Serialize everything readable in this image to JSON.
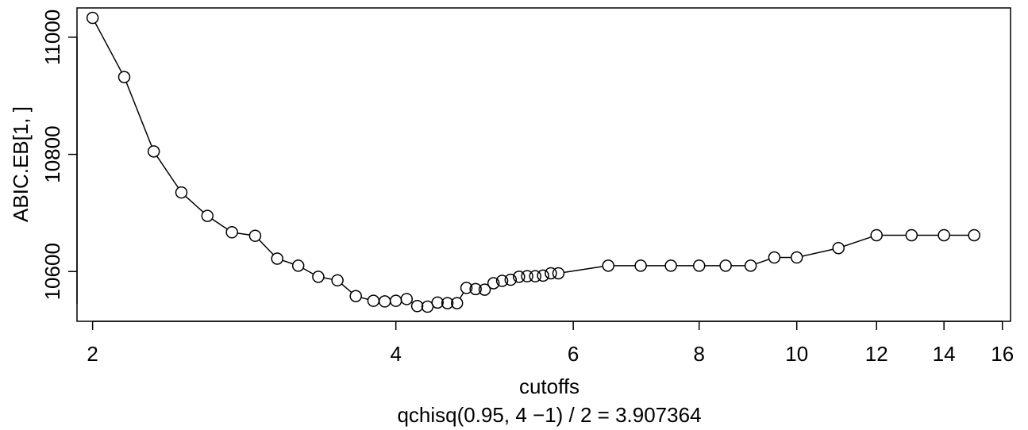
{
  "chart_data": {
    "type": "line",
    "xlabel": "cutoffs",
    "ylabel": "ABIC.EB[1, ]",
    "subtitle": "qchisq(0.95, 4 −1) / 2 =  3.907364",
    "x_scale": "log",
    "xlim": [
      1.93,
      16.3
    ],
    "ylim": [
      10515,
      11050
    ],
    "x_ticks": [
      2,
      4,
      6,
      8,
      10,
      12,
      14,
      16
    ],
    "x_tick_labels": [
      "2",
      "4",
      "6",
      "8",
      "10",
      "12",
      "14",
      "16"
    ],
    "y_ticks": [
      10600,
      10800,
      11000
    ],
    "y_tick_labels": [
      "10600",
      "10800",
      "11000"
    ],
    "grid": false,
    "marker": "open-circle",
    "series": [
      {
        "x": [
          2.0,
          2.15,
          2.3,
          2.45,
          2.6,
          2.75,
          2.9,
          3.05,
          3.2,
          3.35,
          3.5,
          3.65,
          3.8,
          3.9,
          4.0,
          4.1,
          4.2,
          4.3,
          4.4,
          4.5,
          4.6,
          4.7,
          4.8,
          4.9,
          5.0,
          5.1,
          5.2,
          5.3,
          5.4,
          5.5,
          5.6,
          5.7,
          5.8,
          6.5,
          7.0,
          7.5,
          8.0,
          8.5,
          9.0,
          9.5,
          10.0,
          11.0,
          12.0,
          13.0,
          14.0,
          15.0
        ],
        "y": [
          11033,
          10932,
          10805,
          10735,
          10695,
          10667,
          10661,
          10622,
          10610,
          10591,
          10585,
          10558,
          10550,
          10549,
          10550,
          10553,
          10541,
          10540,
          10547,
          10546,
          10546,
          10572,
          10570,
          10569,
          10580,
          10584,
          10586,
          10591,
          10592,
          10592,
          10593,
          10597,
          10597,
          10610,
          10610,
          10610,
          10610,
          10610,
          10610,
          10624,
          10624,
          10640,
          10662,
          10662,
          10662,
          10662
        ]
      }
    ]
  }
}
